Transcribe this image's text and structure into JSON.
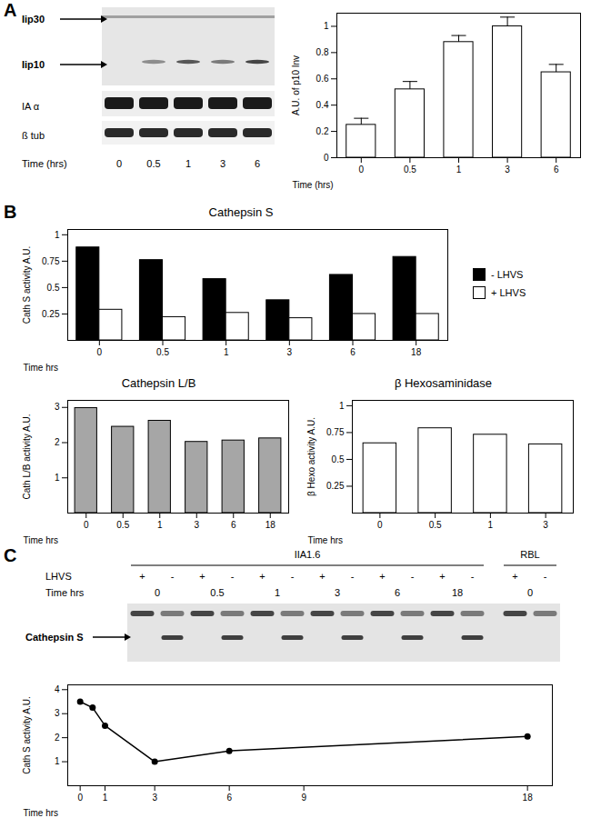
{
  "panels": [
    "A",
    "B",
    "C"
  ],
  "blots": [
    {
      "rows": [
        {
          "label": "Iip30",
          "arrow": true
        },
        {
          "label": "Iip10",
          "arrow": true
        },
        {
          "label": "IA α",
          "arrow": false
        },
        {
          "label": "ß tub",
          "arrow": false
        }
      ],
      "time_label": "Time (hrs)",
      "times": [
        "0",
        "0.5",
        "1",
        "3",
        "6"
      ]
    },
    {
      "lhvs_label": "LHVS",
      "treatments": [
        "+",
        "-"
      ],
      "time_label": "Time hrs",
      "band_label": "Cathepsin S",
      "groups": [
        {
          "name": "IIA1.6",
          "times": [
            "0",
            "0.5",
            "1",
            "3",
            "6",
            "18"
          ]
        },
        {
          "name": "RBL",
          "times": [
            "0"
          ]
        }
      ]
    }
  ],
  "chart_data": [
    {
      "type": "bar",
      "categories": [
        "0",
        "0.5",
        "1",
        "3",
        "6"
      ],
      "values": [
        0.25,
        0.52,
        0.88,
        1.0,
        0.65
      ],
      "errors": [
        0.05,
        0.06,
        0.05,
        0.07,
        0.06
      ],
      "color": "#ffffff",
      "xlabel": "Time (hrs)",
      "ylabel": "A.U. of p10 Inv",
      "ylim": [
        0,
        1.1
      ],
      "yticks": [
        0,
        0.2,
        0.4,
        0.6,
        0.8,
        1
      ]
    },
    {
      "type": "bar",
      "title": "Cathepsin S",
      "categories": [
        "0",
        "0.5",
        "1",
        "3",
        "6",
        "18"
      ],
      "series": [
        {
          "name": "- LHVS",
          "color": "#000000",
          "values": [
            0.88,
            0.76,
            0.58,
            0.38,
            0.62,
            0.79
          ]
        },
        {
          "name": "+ LHVS",
          "color": "#ffffff",
          "values": [
            0.29,
            0.22,
            0.26,
            0.21,
            0.25,
            0.25
          ]
        }
      ],
      "legend": "right",
      "xlabel": "Time hrs",
      "ylabel": "Cath S activity A.U.",
      "ylim": [
        0,
        1.05
      ],
      "yticks": [
        0.25,
        0.5,
        0.75,
        1
      ]
    },
    {
      "type": "bar",
      "title": "Cathepsin L/B",
      "categories": [
        "0",
        "0.5",
        "1",
        "3",
        "6",
        "18"
      ],
      "values": [
        2.98,
        2.45,
        2.62,
        2.02,
        2.06,
        2.12
      ],
      "color": "#a6a6a6",
      "xlabel": "Time hrs",
      "ylabel": "Cath L/B activity A.U.",
      "ylim": [
        0,
        3.2
      ],
      "yticks": [
        1,
        2,
        3
      ]
    },
    {
      "type": "bar",
      "title": "β Hexosaminidase",
      "categories": [
        "0",
        "0.5",
        "1",
        "3"
      ],
      "values": [
        0.65,
        0.79,
        0.73,
        0.64
      ],
      "color": "#ffffff",
      "xlabel": "Time hrs",
      "ylabel": "β Hexo activity A.U.",
      "ylim": [
        0,
        1.05
      ],
      "yticks": [
        0.25,
        0.5,
        0.75,
        1
      ]
    },
    {
      "type": "line",
      "x": [
        0,
        0.5,
        1,
        3,
        6,
        18
      ],
      "values": [
        3.5,
        3.25,
        2.5,
        1.0,
        1.45,
        2.05
      ],
      "color": "#000000",
      "marker": "circle",
      "line_style": "solid",
      "xlabel": "Time hrs",
      "ylabel": "Cath S activity A.U.",
      "xlim": [
        -0.5,
        19
      ],
      "xticks": [
        0,
        1,
        3,
        6,
        9,
        18
      ],
      "ylim": [
        0,
        4.2
      ],
      "yticks": [
        1,
        2,
        3,
        4
      ]
    }
  ]
}
